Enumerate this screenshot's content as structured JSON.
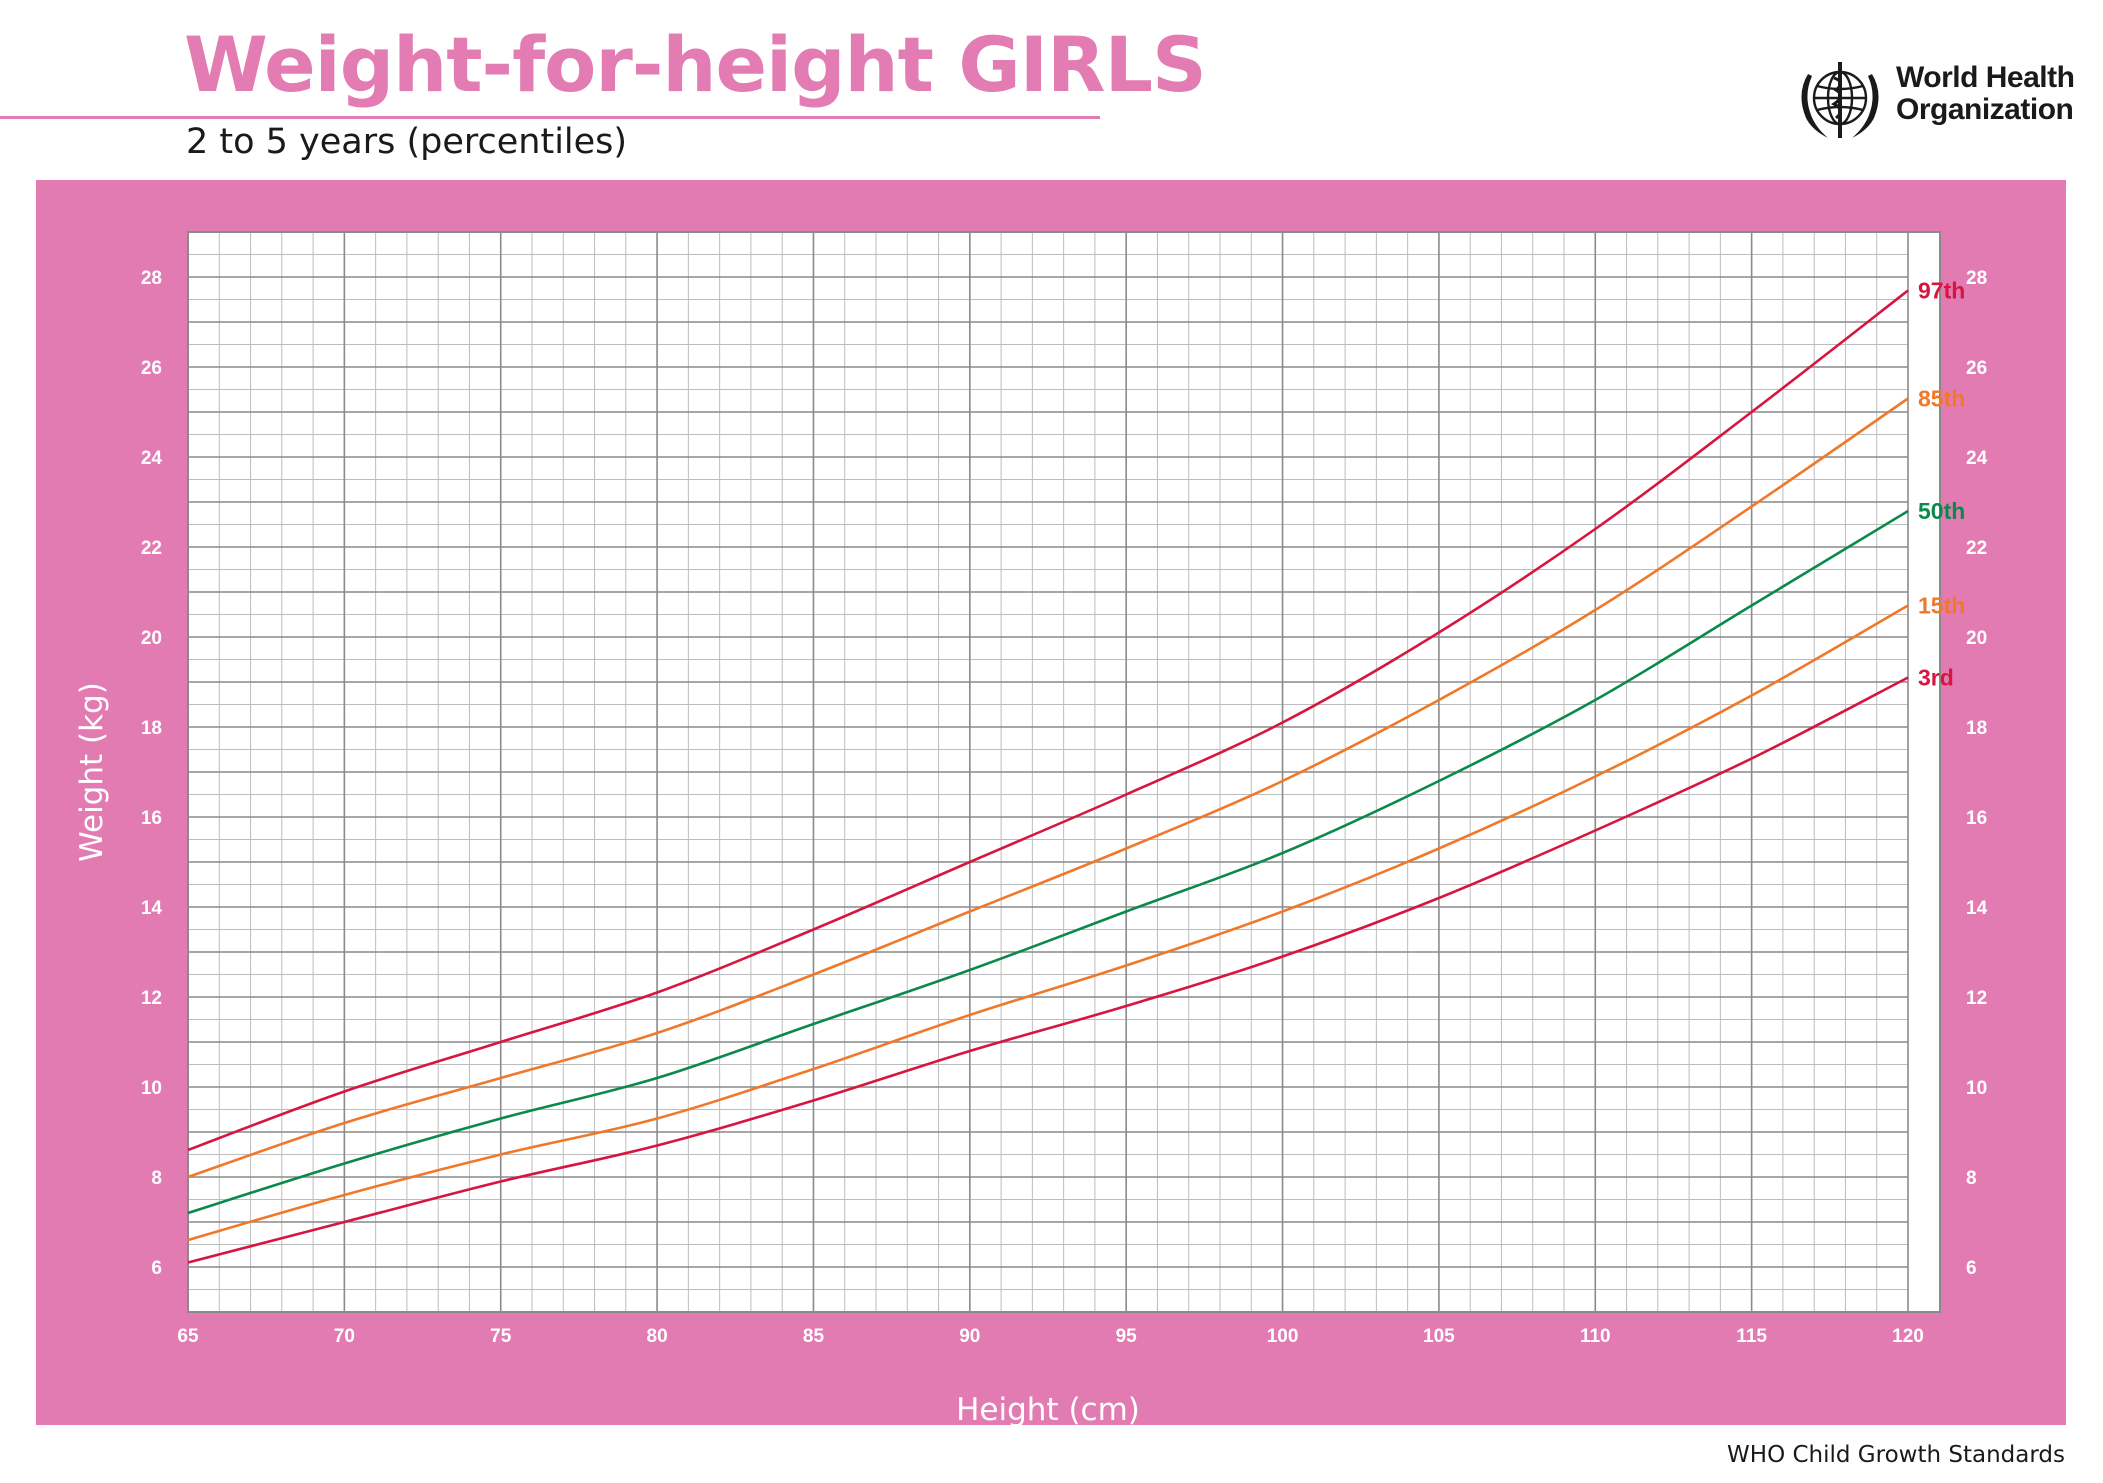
{
  "header": {
    "title": "Weight-for-height GIRLS",
    "subtitle": "2 to 5 years (percentiles)",
    "logo_line1": "World Health",
    "logo_line2": "Organization"
  },
  "footer": {
    "text": "WHO Child Growth Standards"
  },
  "colors": {
    "brand_pink": "#e37bb3",
    "title_pink": "#e27cb2",
    "grid": "#8a8a8a",
    "grid_minor": "#bdbdbd",
    "red": "#d6163f",
    "orange": "#f0782a",
    "green": "#0a8a4a"
  },
  "chart_data": {
    "type": "line",
    "xlabel": "Height (cm)",
    "ylabel": "Weight (kg)",
    "xlim": [
      65,
      120
    ],
    "ylim": [
      5,
      29
    ],
    "x_ticks": [
      "65",
      "70",
      "75",
      "80",
      "85",
      "90",
      "95",
      "100",
      "105",
      "110",
      "115",
      "120"
    ],
    "y_ticks": [
      "6",
      "8",
      "10",
      "12",
      "14",
      "16",
      "18",
      "20",
      "22",
      "24",
      "26",
      "28"
    ],
    "grid": true,
    "x": [
      65,
      70,
      75,
      80,
      85,
      90,
      95,
      100,
      105,
      110,
      115,
      120
    ],
    "series": [
      {
        "name": "97th",
        "color": "#d6163f",
        "values": [
          8.6,
          9.9,
          11.0,
          12.1,
          13.5,
          15.0,
          16.5,
          18.1,
          20.1,
          22.4,
          25.0,
          27.7
        ]
      },
      {
        "name": "85th",
        "color": "#f0782a",
        "values": [
          8.0,
          9.2,
          10.2,
          11.2,
          12.5,
          13.9,
          15.3,
          16.8,
          18.6,
          20.6,
          22.9,
          25.3
        ]
      },
      {
        "name": "50th",
        "color": "#0a8a4a",
        "values": [
          7.2,
          8.3,
          9.3,
          10.2,
          11.4,
          12.6,
          13.9,
          15.2,
          16.8,
          18.6,
          20.7,
          22.8
        ]
      },
      {
        "name": "15th",
        "color": "#f0782a",
        "values": [
          6.6,
          7.6,
          8.5,
          9.3,
          10.4,
          11.6,
          12.7,
          13.9,
          15.3,
          16.9,
          18.7,
          20.7
        ]
      },
      {
        "name": "3rd",
        "color": "#d6163f",
        "values": [
          6.1,
          7.0,
          7.9,
          8.7,
          9.7,
          10.8,
          11.8,
          12.9,
          14.2,
          15.7,
          17.3,
          19.1
        ]
      }
    ]
  }
}
